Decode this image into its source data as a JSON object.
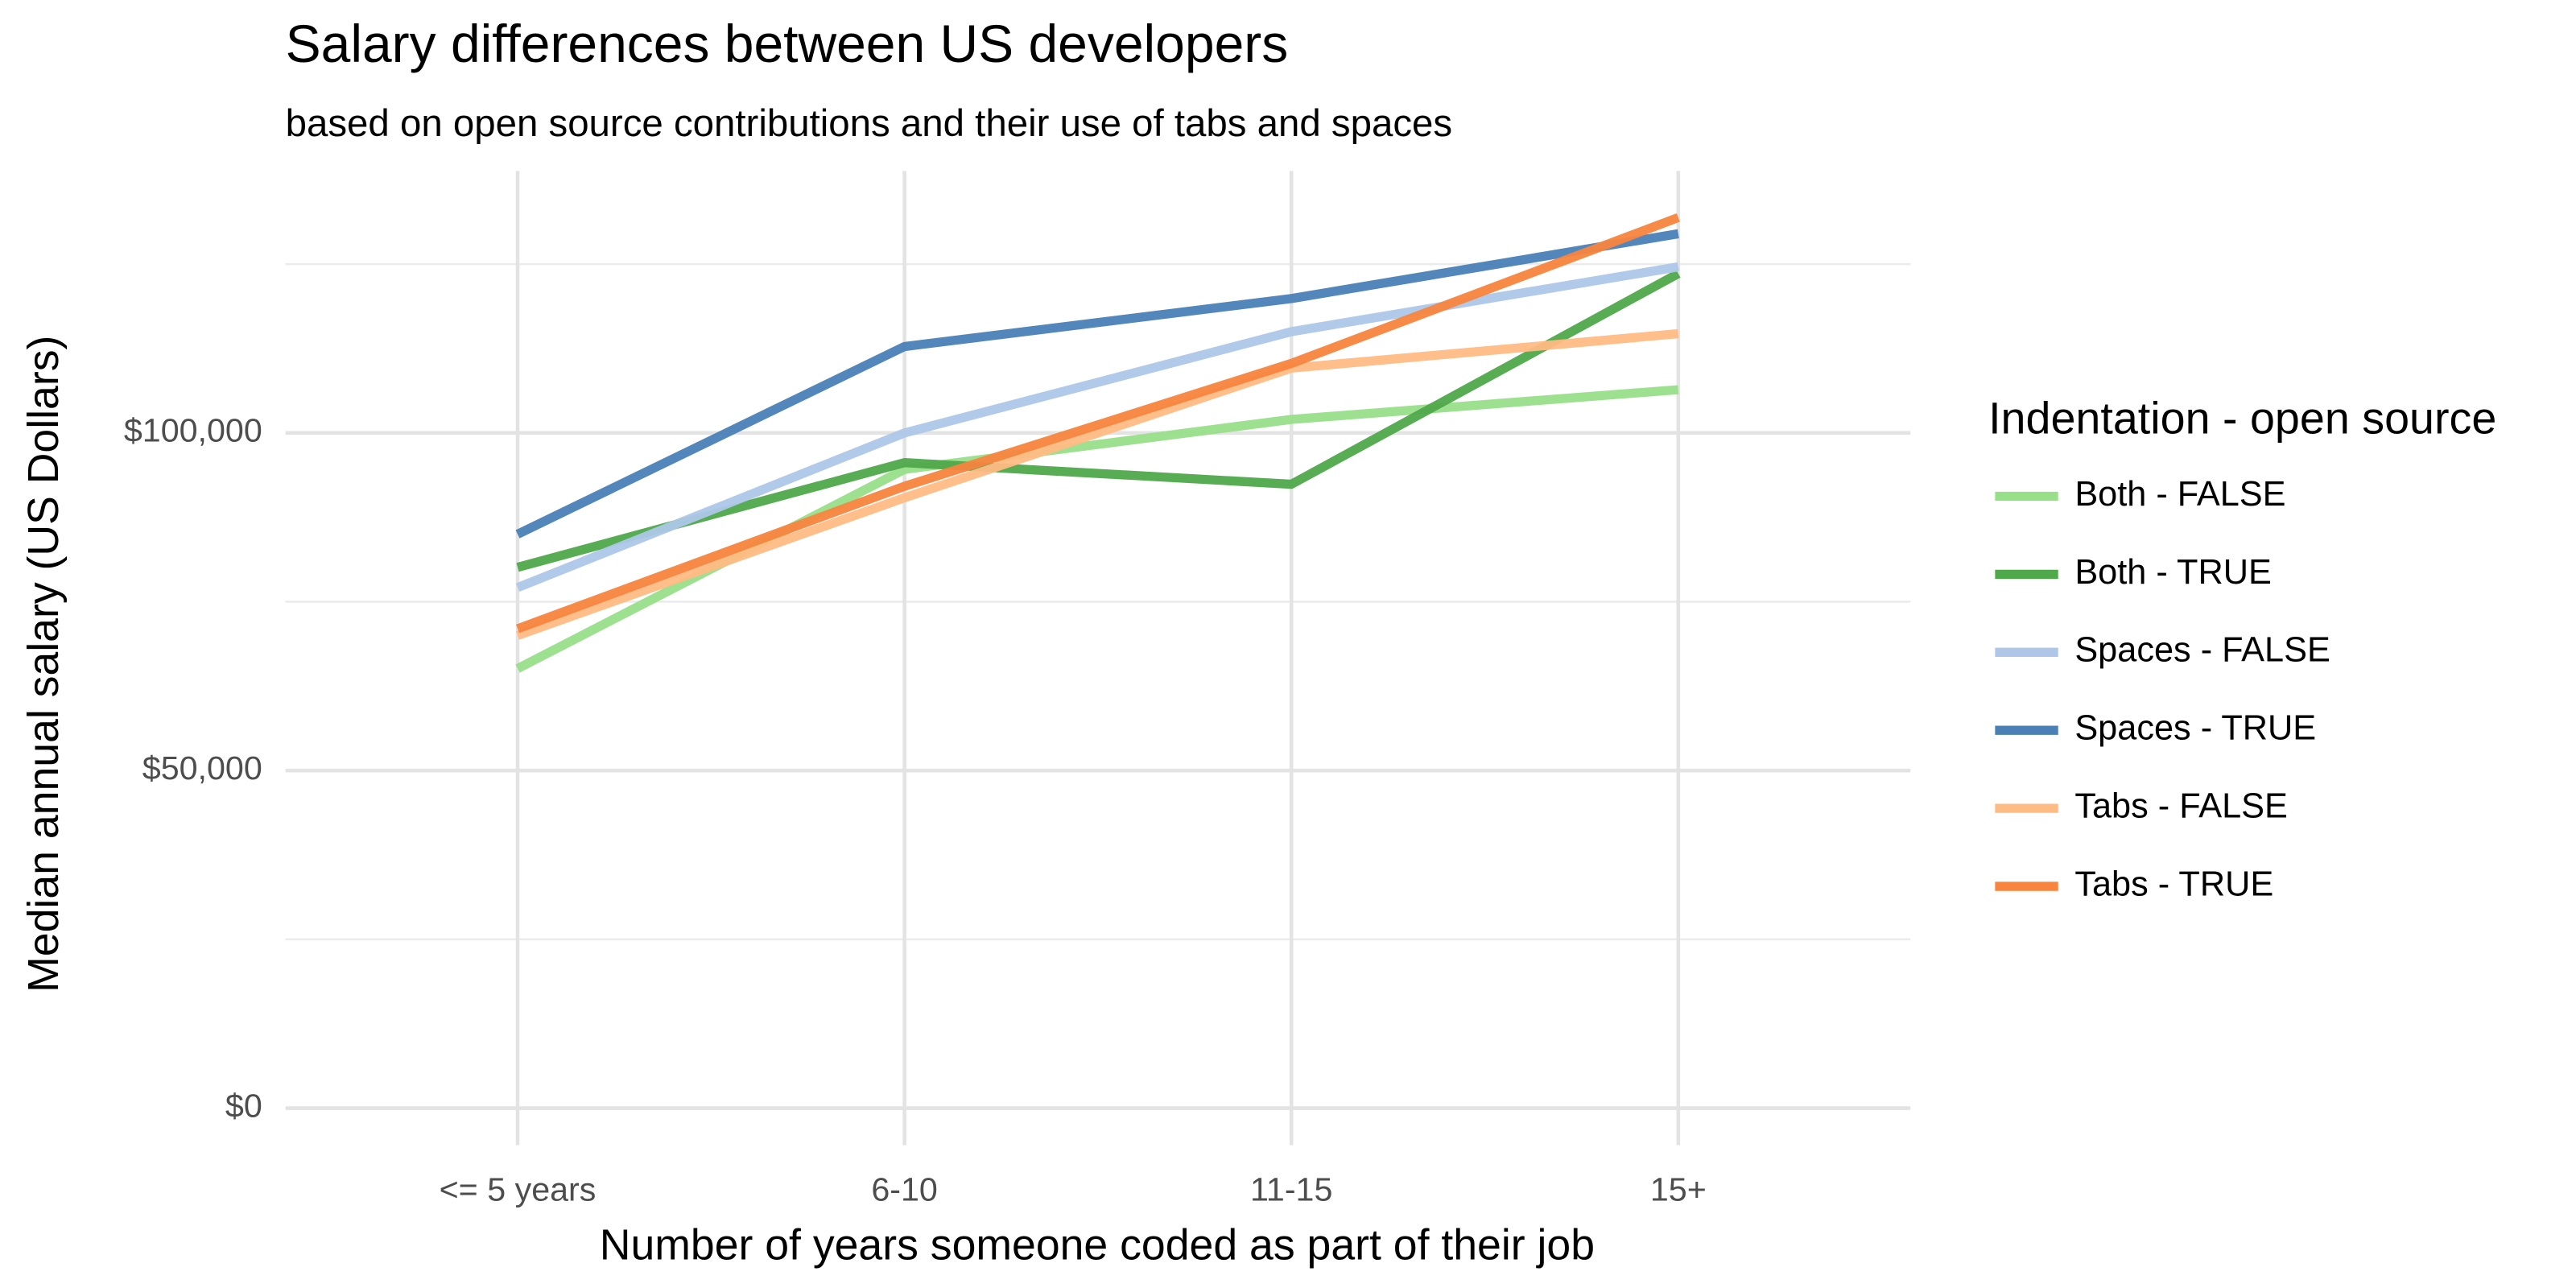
{
  "chart_data": {
    "type": "line",
    "title": "Salary differences between US developers",
    "subtitle": "based on open source contributions and their use of tabs and spaces",
    "x_label": "Number of years someone coded as part of their job",
    "y_label": "Median annual salary (US Dollars)",
    "legend_title": "Indentation - open source",
    "legend_position": "right",
    "grid": true,
    "categories": [
      "<= 5 years",
      "6-10",
      "11-15",
      "15+"
    ],
    "ylim": [
      -5500,
      138800
    ],
    "yticks": [
      {
        "value": 0,
        "label": "$0"
      },
      {
        "value": 50000,
        "label": "$50,000"
      },
      {
        "value": 100000,
        "label": "$100,000"
      }
    ],
    "minor_yticks": [
      25000,
      75000,
      125000
    ],
    "series": [
      {
        "name": "Both - FALSE",
        "color": "#98df8a",
        "values": [
          65100,
          94600,
          102000,
          106400
        ]
      },
      {
        "name": "Both - TRUE",
        "color": "#4fa84a",
        "values": [
          80100,
          95600,
          92400,
          123600
        ]
      },
      {
        "name": "Spaces - FALSE",
        "color": "#aec7e8",
        "values": [
          77100,
          100000,
          115000,
          124600
        ]
      },
      {
        "name": "Spaces - TRUE",
        "color": "#4a80b6",
        "values": [
          85000,
          112800,
          119900,
          129500
        ]
      },
      {
        "name": "Tabs - FALSE",
        "color": "#ffbb84",
        "values": [
          70000,
          90400,
          109600,
          114700
        ]
      },
      {
        "name": "Tabs - TRUE",
        "color": "#f8843e",
        "values": [
          71000,
          92100,
          110300,
          131900
        ]
      }
    ]
  }
}
